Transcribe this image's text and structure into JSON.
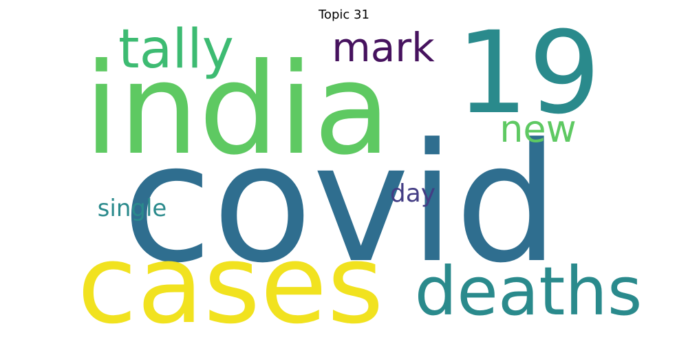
{
  "title": "Topic 31",
  "words": [
    {
      "text": "covid",
      "color": "#2f6e8f"
    },
    {
      "text": "india",
      "color": "#5ec962"
    },
    {
      "text": "cases",
      "color": "#f1e21f"
    },
    {
      "text": "19",
      "color": "#2a8a8c"
    },
    {
      "text": "deaths",
      "color": "#2a8a8c"
    },
    {
      "text": "tally",
      "color": "#3dbb72"
    },
    {
      "text": "mark",
      "color": "#46125e"
    },
    {
      "text": "new",
      "color": "#5ec962"
    },
    {
      "text": "single",
      "color": "#2a8a8c"
    },
    {
      "text": "day",
      "color": "#433d84"
    }
  ]
}
